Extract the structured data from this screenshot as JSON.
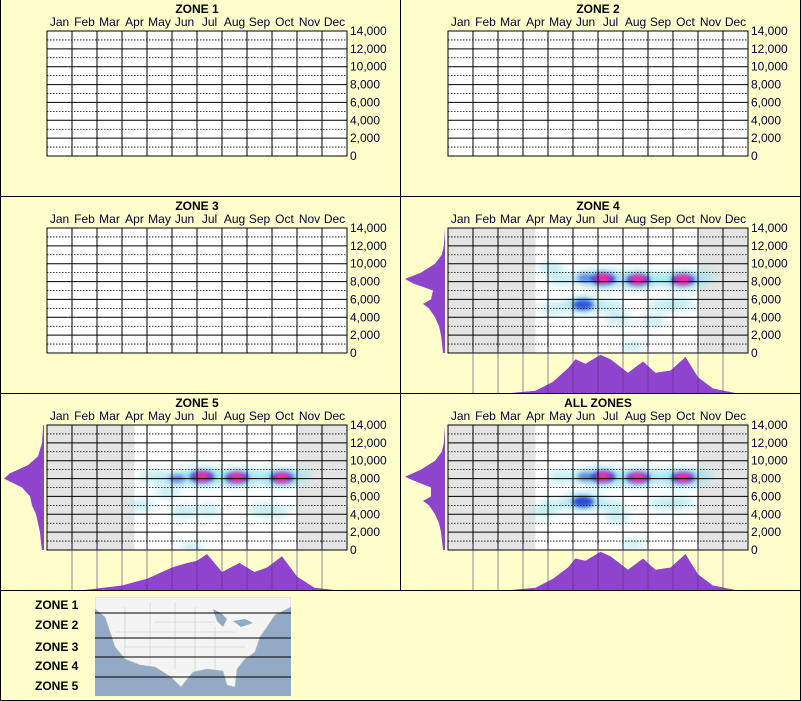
{
  "months": [
    "Jan",
    "Feb",
    "Mar",
    "Apr",
    "May",
    "Jun",
    "Jul",
    "Aug",
    "Sep",
    "Oct",
    "Nov",
    "Dec"
  ],
  "y_ticks": [
    "14,000",
    "12,000",
    "10,000",
    "8,000",
    "6,000",
    "4,000",
    "2,000",
    "0"
  ],
  "legend": {
    "zones": [
      "ZONE 1",
      "ZONE 2",
      "ZONE 3",
      "ZONE 4",
      "ZONE 5"
    ]
  },
  "colors": {
    "background": "#ffffcc",
    "no_data": "#e4e4e4",
    "heat_low": "#9fe3ec",
    "heat_mid": "#1030d0",
    "heat_high": "#ff2a8c",
    "profile": "#8e44cc"
  },
  "chart_data": [
    {
      "type": "heatmap",
      "title": "ZONE 1",
      "ylim": [
        0,
        14000
      ],
      "grid": true,
      "hotspots": [],
      "no_data_months": [],
      "elevation_profile": [],
      "month_profile": []
    },
    {
      "type": "heatmap",
      "title": "ZONE 2",
      "ylim": [
        0,
        14000
      ],
      "grid": true,
      "hotspots": [],
      "no_data_months": [],
      "elevation_profile": [],
      "month_profile": []
    },
    {
      "type": "heatmap",
      "title": "ZONE 3",
      "ylim": [
        0,
        14000
      ],
      "grid": true,
      "hotspots": [],
      "no_data_months": [],
      "elevation_profile": [],
      "month_profile": []
    },
    {
      "type": "heatmap",
      "title": "ZONE 4",
      "ylim": [
        0,
        14000
      ],
      "grid": true,
      "no_data_months": [
        [
          0,
          3.5
        ],
        [
          10,
          12
        ]
      ],
      "hotspots": [
        [
          6.2,
          8300,
          1.0
        ],
        [
          7.6,
          8200,
          0.95
        ],
        [
          9.4,
          8200,
          0.95
        ],
        [
          5.4,
          5400,
          0.8
        ],
        [
          4.5,
          8300,
          0.3
        ],
        [
          5.5,
          8400,
          0.5
        ],
        [
          8.5,
          8300,
          0.4
        ],
        [
          10.2,
          8500,
          0.25
        ],
        [
          4.2,
          5000,
          0.25
        ],
        [
          6.5,
          5200,
          0.3
        ],
        [
          8.6,
          5300,
          0.3
        ],
        [
          9.3,
          5500,
          0.3
        ],
        [
          6.8,
          3800,
          0.2
        ],
        [
          8.2,
          3600,
          0.15
        ],
        [
          7.4,
          700,
          0.15
        ],
        [
          4.1,
          9500,
          0.2
        ]
      ],
      "elevation_profile": [
        [
          0,
          0.05
        ],
        [
          2000,
          0.1
        ],
        [
          3000,
          0.15
        ],
        [
          4000,
          0.25
        ],
        [
          5000,
          0.4
        ],
        [
          5500,
          0.55
        ],
        [
          6000,
          0.35
        ],
        [
          7000,
          0.3
        ],
        [
          7800,
          0.8
        ],
        [
          8300,
          1.0
        ],
        [
          9000,
          0.6
        ],
        [
          10000,
          0.25
        ],
        [
          11000,
          0.08
        ],
        [
          12000,
          0.03
        ],
        [
          14000,
          0
        ]
      ],
      "month_profile": [
        [
          2.5,
          0
        ],
        [
          3.5,
          0.05
        ],
        [
          4.2,
          0.25
        ],
        [
          4.8,
          0.55
        ],
        [
          5.1,
          0.75
        ],
        [
          5.5,
          0.65
        ],
        [
          6.1,
          0.85
        ],
        [
          6.5,
          0.75
        ],
        [
          7.2,
          0.45
        ],
        [
          7.8,
          0.7
        ],
        [
          8.3,
          0.45
        ],
        [
          8.9,
          0.5
        ],
        [
          9.5,
          0.8
        ],
        [
          10,
          0.35
        ],
        [
          10.6,
          0.1
        ],
        [
          11.5,
          0
        ]
      ]
    },
    {
      "type": "heatmap",
      "title": "ZONE 5",
      "ylim": [
        0,
        14000
      ],
      "grid": true,
      "no_data_months": [
        [
          0,
          3.5
        ],
        [
          10,
          12
        ]
      ],
      "hotspots": [
        [
          6.2,
          8200,
          1.0
        ],
        [
          7.6,
          8100,
          0.95
        ],
        [
          9.4,
          8100,
          0.95
        ],
        [
          5.2,
          8000,
          0.5
        ],
        [
          4.3,
          8200,
          0.35
        ],
        [
          8.5,
          8200,
          0.4
        ],
        [
          10.0,
          8300,
          0.3
        ],
        [
          3.8,
          5000,
          0.2
        ],
        [
          5.5,
          4300,
          0.3
        ],
        [
          6.5,
          4500,
          0.2
        ],
        [
          8.6,
          4500,
          0.25
        ],
        [
          9.2,
          4300,
          0.2
        ],
        [
          4.8,
          6500,
          0.2
        ],
        [
          5.8,
          300,
          0.15
        ]
      ],
      "elevation_profile": [
        [
          0,
          0.05
        ],
        [
          1000,
          0.08
        ],
        [
          2000,
          0.1
        ],
        [
          3000,
          0.15
        ],
        [
          4000,
          0.2
        ],
        [
          5000,
          0.3
        ],
        [
          6000,
          0.35
        ],
        [
          7000,
          0.55
        ],
        [
          8000,
          1.0
        ],
        [
          8600,
          0.85
        ],
        [
          9500,
          0.4
        ],
        [
          10500,
          0.15
        ],
        [
          12000,
          0.05
        ],
        [
          14000,
          0.02
        ]
      ],
      "month_profile": [
        [
          1.5,
          0
        ],
        [
          3,
          0.1
        ],
        [
          4,
          0.25
        ],
        [
          5,
          0.5
        ],
        [
          5.6,
          0.6
        ],
        [
          6,
          0.65
        ],
        [
          6.4,
          0.8
        ],
        [
          7,
          0.4
        ],
        [
          7.7,
          0.6
        ],
        [
          8.3,
          0.4
        ],
        [
          8.8,
          0.5
        ],
        [
          9.4,
          0.75
        ],
        [
          10,
          0.3
        ],
        [
          10.7,
          0.05
        ],
        [
          11.5,
          0
        ]
      ]
    },
    {
      "type": "heatmap",
      "title": "ALL ZONES",
      "ylim": [
        0,
        14000
      ],
      "grid": true,
      "no_data_months": [
        [
          0,
          3.5
        ],
        [
          10,
          12
        ]
      ],
      "hotspots": [
        [
          6.2,
          8200,
          1.0
        ],
        [
          7.6,
          8100,
          0.95
        ],
        [
          9.4,
          8100,
          0.95
        ],
        [
          5.4,
          5400,
          0.85
        ],
        [
          4.5,
          8200,
          0.3
        ],
        [
          5.5,
          8200,
          0.5
        ],
        [
          8.5,
          8200,
          0.4
        ],
        [
          10.1,
          8300,
          0.25
        ],
        [
          4.2,
          5000,
          0.25
        ],
        [
          6.5,
          5000,
          0.3
        ],
        [
          8.6,
          5200,
          0.3
        ],
        [
          9.3,
          5300,
          0.3
        ],
        [
          3.8,
          4300,
          0.2
        ],
        [
          6.8,
          3700,
          0.2
        ],
        [
          7.4,
          700,
          0.15
        ]
      ],
      "elevation_profile": [
        [
          0,
          0.05
        ],
        [
          2000,
          0.1
        ],
        [
          3000,
          0.15
        ],
        [
          4000,
          0.25
        ],
        [
          5000,
          0.4
        ],
        [
          5500,
          0.55
        ],
        [
          6000,
          0.35
        ],
        [
          7000,
          0.35
        ],
        [
          7800,
          0.8
        ],
        [
          8200,
          1.0
        ],
        [
          9000,
          0.6
        ],
        [
          10000,
          0.25
        ],
        [
          11000,
          0.08
        ],
        [
          12000,
          0.03
        ],
        [
          14000,
          0
        ]
      ],
      "month_profile": [
        [
          2.5,
          0
        ],
        [
          3.5,
          0.05
        ],
        [
          4.2,
          0.25
        ],
        [
          4.8,
          0.5
        ],
        [
          5.1,
          0.7
        ],
        [
          5.5,
          0.65
        ],
        [
          6.1,
          0.85
        ],
        [
          6.5,
          0.75
        ],
        [
          7.2,
          0.45
        ],
        [
          7.8,
          0.7
        ],
        [
          8.3,
          0.45
        ],
        [
          8.9,
          0.5
        ],
        [
          9.5,
          0.8
        ],
        [
          10,
          0.35
        ],
        [
          10.6,
          0.1
        ],
        [
          11.5,
          0
        ]
      ]
    }
  ]
}
